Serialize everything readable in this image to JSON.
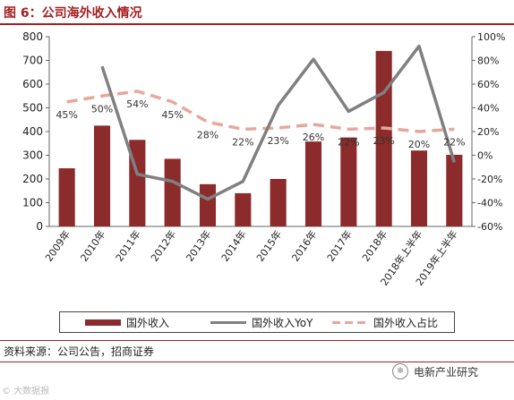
{
  "title": "图 6：公司海外收入情况",
  "source": "资料来源：公司公告，招商证券",
  "watermark_left": "© 大数据报",
  "watermark_right": "电新产业研究",
  "colors": {
    "bar": "#8b2b2b",
    "yoy": "#808080",
    "share": "#e6a89a",
    "title": "#a32020"
  },
  "chart_data": {
    "type": "bar",
    "categories": [
      "2009年",
      "2010年",
      "2011年",
      "2012年",
      "2013年",
      "2014年",
      "2015年",
      "2016年",
      "2017年",
      "2018年",
      "2018年上半年",
      "2019年上半年"
    ],
    "series": [
      {
        "name": "国外收入",
        "type": "bar",
        "axis": "left",
        "values": [
          245,
          425,
          365,
          285,
          178,
          140,
          200,
          358,
          375,
          740,
          320,
          302
        ]
      },
      {
        "name": "国外收入YoY",
        "type": "line",
        "axis": "right",
        "values": [
          null,
          75,
          -16,
          -22,
          -37,
          -22,
          42,
          81,
          37,
          53,
          92,
          -6
        ]
      },
      {
        "name": "国外收入占比",
        "type": "line-dashed",
        "axis": "right",
        "values": [
          45,
          50,
          54,
          45,
          28,
          22,
          23,
          26,
          22,
          23,
          20,
          22
        ],
        "labels": [
          "45%",
          "50%",
          "54%",
          "45%",
          "28%",
          "22%",
          "23%",
          "26%",
          "22%",
          "23%",
          "20%",
          "22%"
        ]
      }
    ],
    "y_left": {
      "min": 0,
      "max": 800,
      "ticks": [
        0,
        100,
        200,
        300,
        400,
        500,
        600,
        700,
        800
      ]
    },
    "y_right": {
      "min": -60,
      "max": 100,
      "ticks": [
        "-60%",
        "-40%",
        "-20%",
        "0%",
        "20%",
        "40%",
        "60%",
        "80%",
        "100%"
      ]
    },
    "legend_position": "bottom",
    "grid": false
  }
}
